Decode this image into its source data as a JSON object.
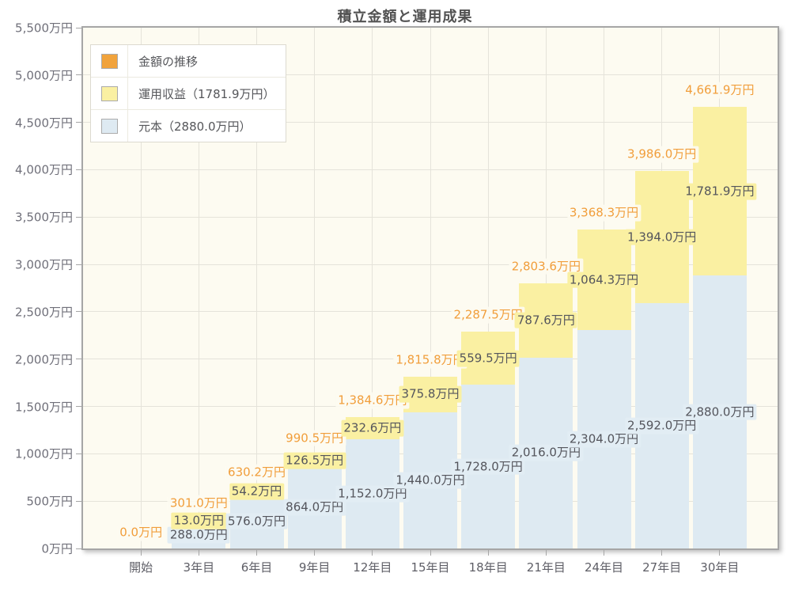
{
  "chart_data": {
    "type": "bar",
    "stacked": true,
    "title": "積立金額と運用成果",
    "xlabel": "",
    "ylabel": "",
    "ylim": [
      0,
      5500
    ],
    "grid": true,
    "legend_position": "top-left",
    "categories": [
      "開始",
      "3年目",
      "6年目",
      "9年目",
      "12年目",
      "15年目",
      "18年目",
      "21年目",
      "24年目",
      "27年目",
      "30年目"
    ],
    "series": [
      {
        "name": "元本（2880.0万円）",
        "color": "#DEEAF2",
        "values": [
          0,
          288.0,
          576.0,
          864.0,
          1152.0,
          1440.0,
          1728.0,
          2016.0,
          2304.0,
          2592.0,
          2880.0
        ],
        "labels": [
          "",
          "288.0万円",
          "576.0万円",
          "864.0万円",
          "1,152.0万円",
          "1,440.0万円",
          "1,728.0万円",
          "2,016.0万円",
          "2,304.0万円",
          "2,592.0万円",
          "2,880.0万円"
        ]
      },
      {
        "name": "運用収益（1781.9万円）",
        "color": "#FAF0A2",
        "values": [
          0,
          13.0,
          54.2,
          126.5,
          232.6,
          375.8,
          559.5,
          787.6,
          1064.3,
          1394.0,
          1781.9
        ],
        "labels": [
          "",
          "13.0万円",
          "54.2万円",
          "126.5万円",
          "232.6万円",
          "375.8万円",
          "559.5万円",
          "787.6万円",
          "1,064.3万円",
          "1,394.0万円",
          "1,781.9万円"
        ]
      }
    ],
    "totals": {
      "name": "金額の推移",
      "color": "#F19E3B",
      "values": [
        0.0,
        301.0,
        630.2,
        990.5,
        1384.6,
        1815.8,
        2287.5,
        2803.6,
        3368.3,
        3986.0,
        4661.9
      ],
      "labels": [
        "0.0万円",
        "301.0万円",
        "630.2万円",
        "990.5万円",
        "1,384.6万円",
        "1,815.8万円",
        "2,287.5万円",
        "2,803.6万円",
        "3,368.3万円",
        "3,986.0万円",
        "4,661.9万円"
      ]
    },
    "legend": [
      {
        "label": "金額の推移",
        "color": "#F1A33C"
      },
      {
        "label": "運用収益（1781.9万円）",
        "color": "#FAF0A2"
      },
      {
        "label": "元本（2880.0万円）",
        "color": "#DEEAF2"
      }
    ],
    "y_ticks": [
      {
        "v": 0,
        "label": "0万円"
      },
      {
        "v": 500,
        "label": "500万円"
      },
      {
        "v": 1000,
        "label": "1,000万円"
      },
      {
        "v": 1500,
        "label": "1,500万円"
      },
      {
        "v": 2000,
        "label": "2,000万円"
      },
      {
        "v": 2500,
        "label": "2,500万円"
      },
      {
        "v": 3000,
        "label": "3,000万円"
      },
      {
        "v": 3500,
        "label": "3,500万円"
      },
      {
        "v": 4000,
        "label": "4,000万円"
      },
      {
        "v": 4500,
        "label": "4,500万円"
      },
      {
        "v": 5000,
        "label": "5,000万円"
      },
      {
        "v": 5500,
        "label": "5,500万円"
      }
    ],
    "colors": {
      "plot_background": "#FDFBF1",
      "grid_line": "#E5E3DA",
      "frame": "#A6A6A6",
      "total_label_text": "#F19E3B",
      "segment_label_text": "#54555C"
    }
  }
}
